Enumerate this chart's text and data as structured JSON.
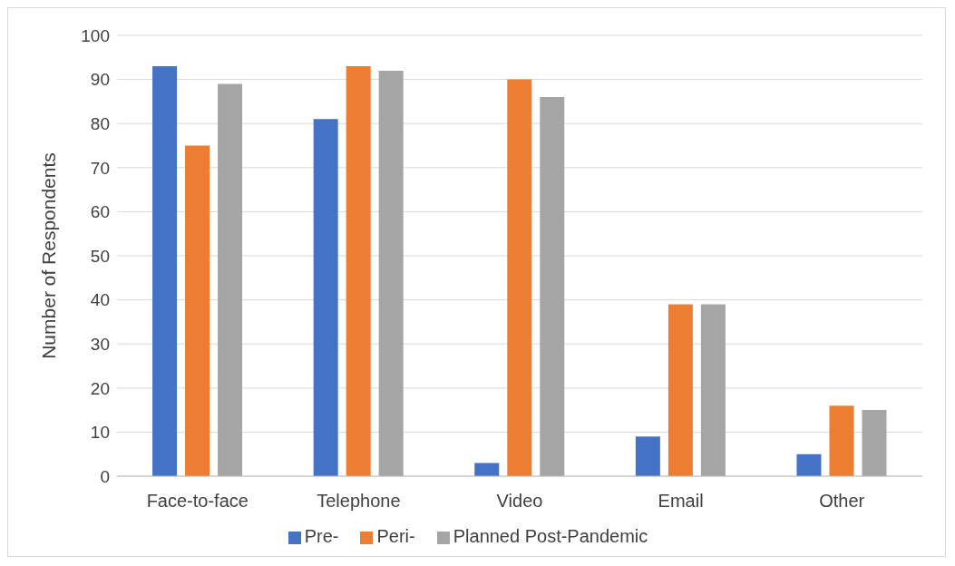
{
  "chart_data": {
    "type": "bar",
    "ylabel": "Number of Respondents",
    "categories": [
      "Face-to-face",
      "Telephone",
      "Video",
      "Email",
      "Other"
    ],
    "series": [
      {
        "name": "Pre-",
        "color": "#4472c4",
        "values": [
          93,
          81,
          3,
          9,
          5
        ]
      },
      {
        "name": "Peri-",
        "color": "#ed7d31",
        "values": [
          75,
          93,
          90,
          39,
          16
        ]
      },
      {
        "name": "Planned Post-Pandemic",
        "color": "#a5a5a5",
        "values": [
          89,
          92,
          86,
          39,
          15
        ]
      }
    ],
    "ylim": [
      0,
      100
    ],
    "yticks": [
      0,
      10,
      20,
      30,
      40,
      50,
      60,
      70,
      80,
      90,
      100
    ],
    "grid": "y",
    "legend": "bottom"
  }
}
